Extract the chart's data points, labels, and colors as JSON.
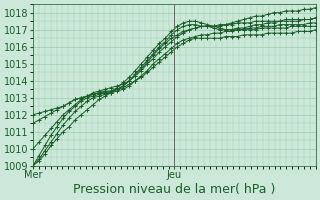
{
  "title": "",
  "xlabel": "Pression niveau de la mer( hPa )",
  "ylabel": "",
  "bg_color": "#cce8d8",
  "grid_color": "#99ccb0",
  "line_color": "#1a5c2a",
  "ylim": [
    1009,
    1018.5
  ],
  "xlim": [
    0,
    48
  ],
  "day_labels": [
    "Mer",
    "Jeu"
  ],
  "day_positions": [
    0,
    24
  ],
  "vline_x": 24,
  "series": [
    [
      1009.0,
      1009.3,
      1009.7,
      1010.2,
      1010.6,
      1011.0,
      1011.3,
      1011.7,
      1012.0,
      1012.3,
      1012.6,
      1012.9,
      1013.1,
      1013.3,
      1013.5,
      1013.7,
      1014.0,
      1014.3,
      1014.7,
      1015.1,
      1015.5,
      1015.9,
      1016.2,
      1016.5,
      1016.7,
      1016.9,
      1017.0,
      1017.1,
      1017.2,
      1017.2,
      1017.2,
      1017.3,
      1017.3,
      1017.4,
      1017.5,
      1017.6,
      1017.7,
      1017.8,
      1017.8,
      1017.9,
      1018.0,
      1018.0,
      1018.1,
      1018.1,
      1018.1,
      1018.2,
      1018.2,
      1018.3
    ],
    [
      1009.0,
      1009.4,
      1009.9,
      1010.4,
      1010.9,
      1011.4,
      1011.8,
      1012.2,
      1012.5,
      1012.8,
      1013.0,
      1013.1,
      1013.2,
      1013.3,
      1013.5,
      1013.7,
      1014.0,
      1014.4,
      1014.8,
      1015.2,
      1015.6,
      1016.0,
      1016.3,
      1016.7,
      1017.0,
      1017.2,
      1017.3,
      1017.3,
      1017.2,
      1017.2,
      1017.1,
      1017.0,
      1017.0,
      1017.0,
      1017.1,
      1017.1,
      1017.2,
      1017.3,
      1017.3,
      1017.4,
      1017.4,
      1017.5,
      1017.5,
      1017.5,
      1017.5,
      1017.6,
      1017.6,
      1017.7
    ],
    [
      1009.0,
      1009.6,
      1010.2,
      1010.8,
      1011.3,
      1011.8,
      1012.2,
      1012.5,
      1012.8,
      1013.0,
      1013.1,
      1013.2,
      1013.3,
      1013.4,
      1013.6,
      1013.9,
      1014.2,
      1014.6,
      1015.0,
      1015.4,
      1015.8,
      1016.2,
      1016.5,
      1016.9,
      1017.2,
      1017.4,
      1017.5,
      1017.5,
      1017.4,
      1017.3,
      1017.2,
      1017.1,
      1017.0,
      1017.0,
      1017.0,
      1017.0,
      1017.1,
      1017.1,
      1017.2,
      1017.2,
      1017.2,
      1017.3,
      1017.3,
      1017.3,
      1017.3,
      1017.3,
      1017.4,
      1017.4
    ],
    [
      1010.0,
      1010.4,
      1010.8,
      1011.2,
      1011.6,
      1012.0,
      1012.3,
      1012.6,
      1012.9,
      1013.1,
      1013.3,
      1013.4,
      1013.5,
      1013.6,
      1013.7,
      1013.8,
      1014.0,
      1014.3,
      1014.6,
      1015.0,
      1015.3,
      1015.7,
      1016.0,
      1016.3,
      1016.6,
      1016.8,
      1017.0,
      1017.1,
      1017.2,
      1017.2,
      1017.2,
      1017.2,
      1017.3,
      1017.3,
      1017.4,
      1017.4,
      1017.4,
      1017.5,
      1017.5,
      1017.5,
      1017.5,
      1017.5,
      1017.6,
      1017.6,
      1017.6,
      1017.6,
      1017.6,
      1017.7
    ],
    [
      1011.5,
      1011.7,
      1011.9,
      1012.1,
      1012.3,
      1012.5,
      1012.7,
      1012.9,
      1013.0,
      1013.1,
      1013.2,
      1013.3,
      1013.4,
      1013.4,
      1013.5,
      1013.6,
      1013.8,
      1014.0,
      1014.3,
      1014.6,
      1015.0,
      1015.3,
      1015.6,
      1015.9,
      1016.2,
      1016.4,
      1016.5,
      1016.6,
      1016.7,
      1016.7,
      1016.8,
      1016.8,
      1016.9,
      1016.9,
      1017.0,
      1017.0,
      1017.0,
      1017.0,
      1017.1,
      1017.1,
      1017.1,
      1017.1,
      1017.1,
      1017.2,
      1017.2,
      1017.2,
      1017.2,
      1017.2
    ],
    [
      1012.0,
      1012.1,
      1012.2,
      1012.3,
      1012.4,
      1012.5,
      1012.7,
      1012.9,
      1013.0,
      1013.1,
      1013.2,
      1013.3,
      1013.3,
      1013.3,
      1013.4,
      1013.5,
      1013.7,
      1014.0,
      1014.2,
      1014.5,
      1014.8,
      1015.1,
      1015.4,
      1015.7,
      1016.0,
      1016.2,
      1016.4,
      1016.5,
      1016.5,
      1016.5,
      1016.5,
      1016.5,
      1016.6,
      1016.6,
      1016.6,
      1016.7,
      1016.7,
      1016.7,
      1016.7,
      1016.8,
      1016.8,
      1016.8,
      1016.8,
      1016.8,
      1016.9,
      1016.9,
      1016.9,
      1017.0
    ]
  ],
  "yticks": [
    1009,
    1010,
    1011,
    1012,
    1013,
    1014,
    1015,
    1016,
    1017,
    1018
  ],
  "tick_fontsize": 7,
  "xlabel_fontsize": 9,
  "vline_color": "#666666"
}
